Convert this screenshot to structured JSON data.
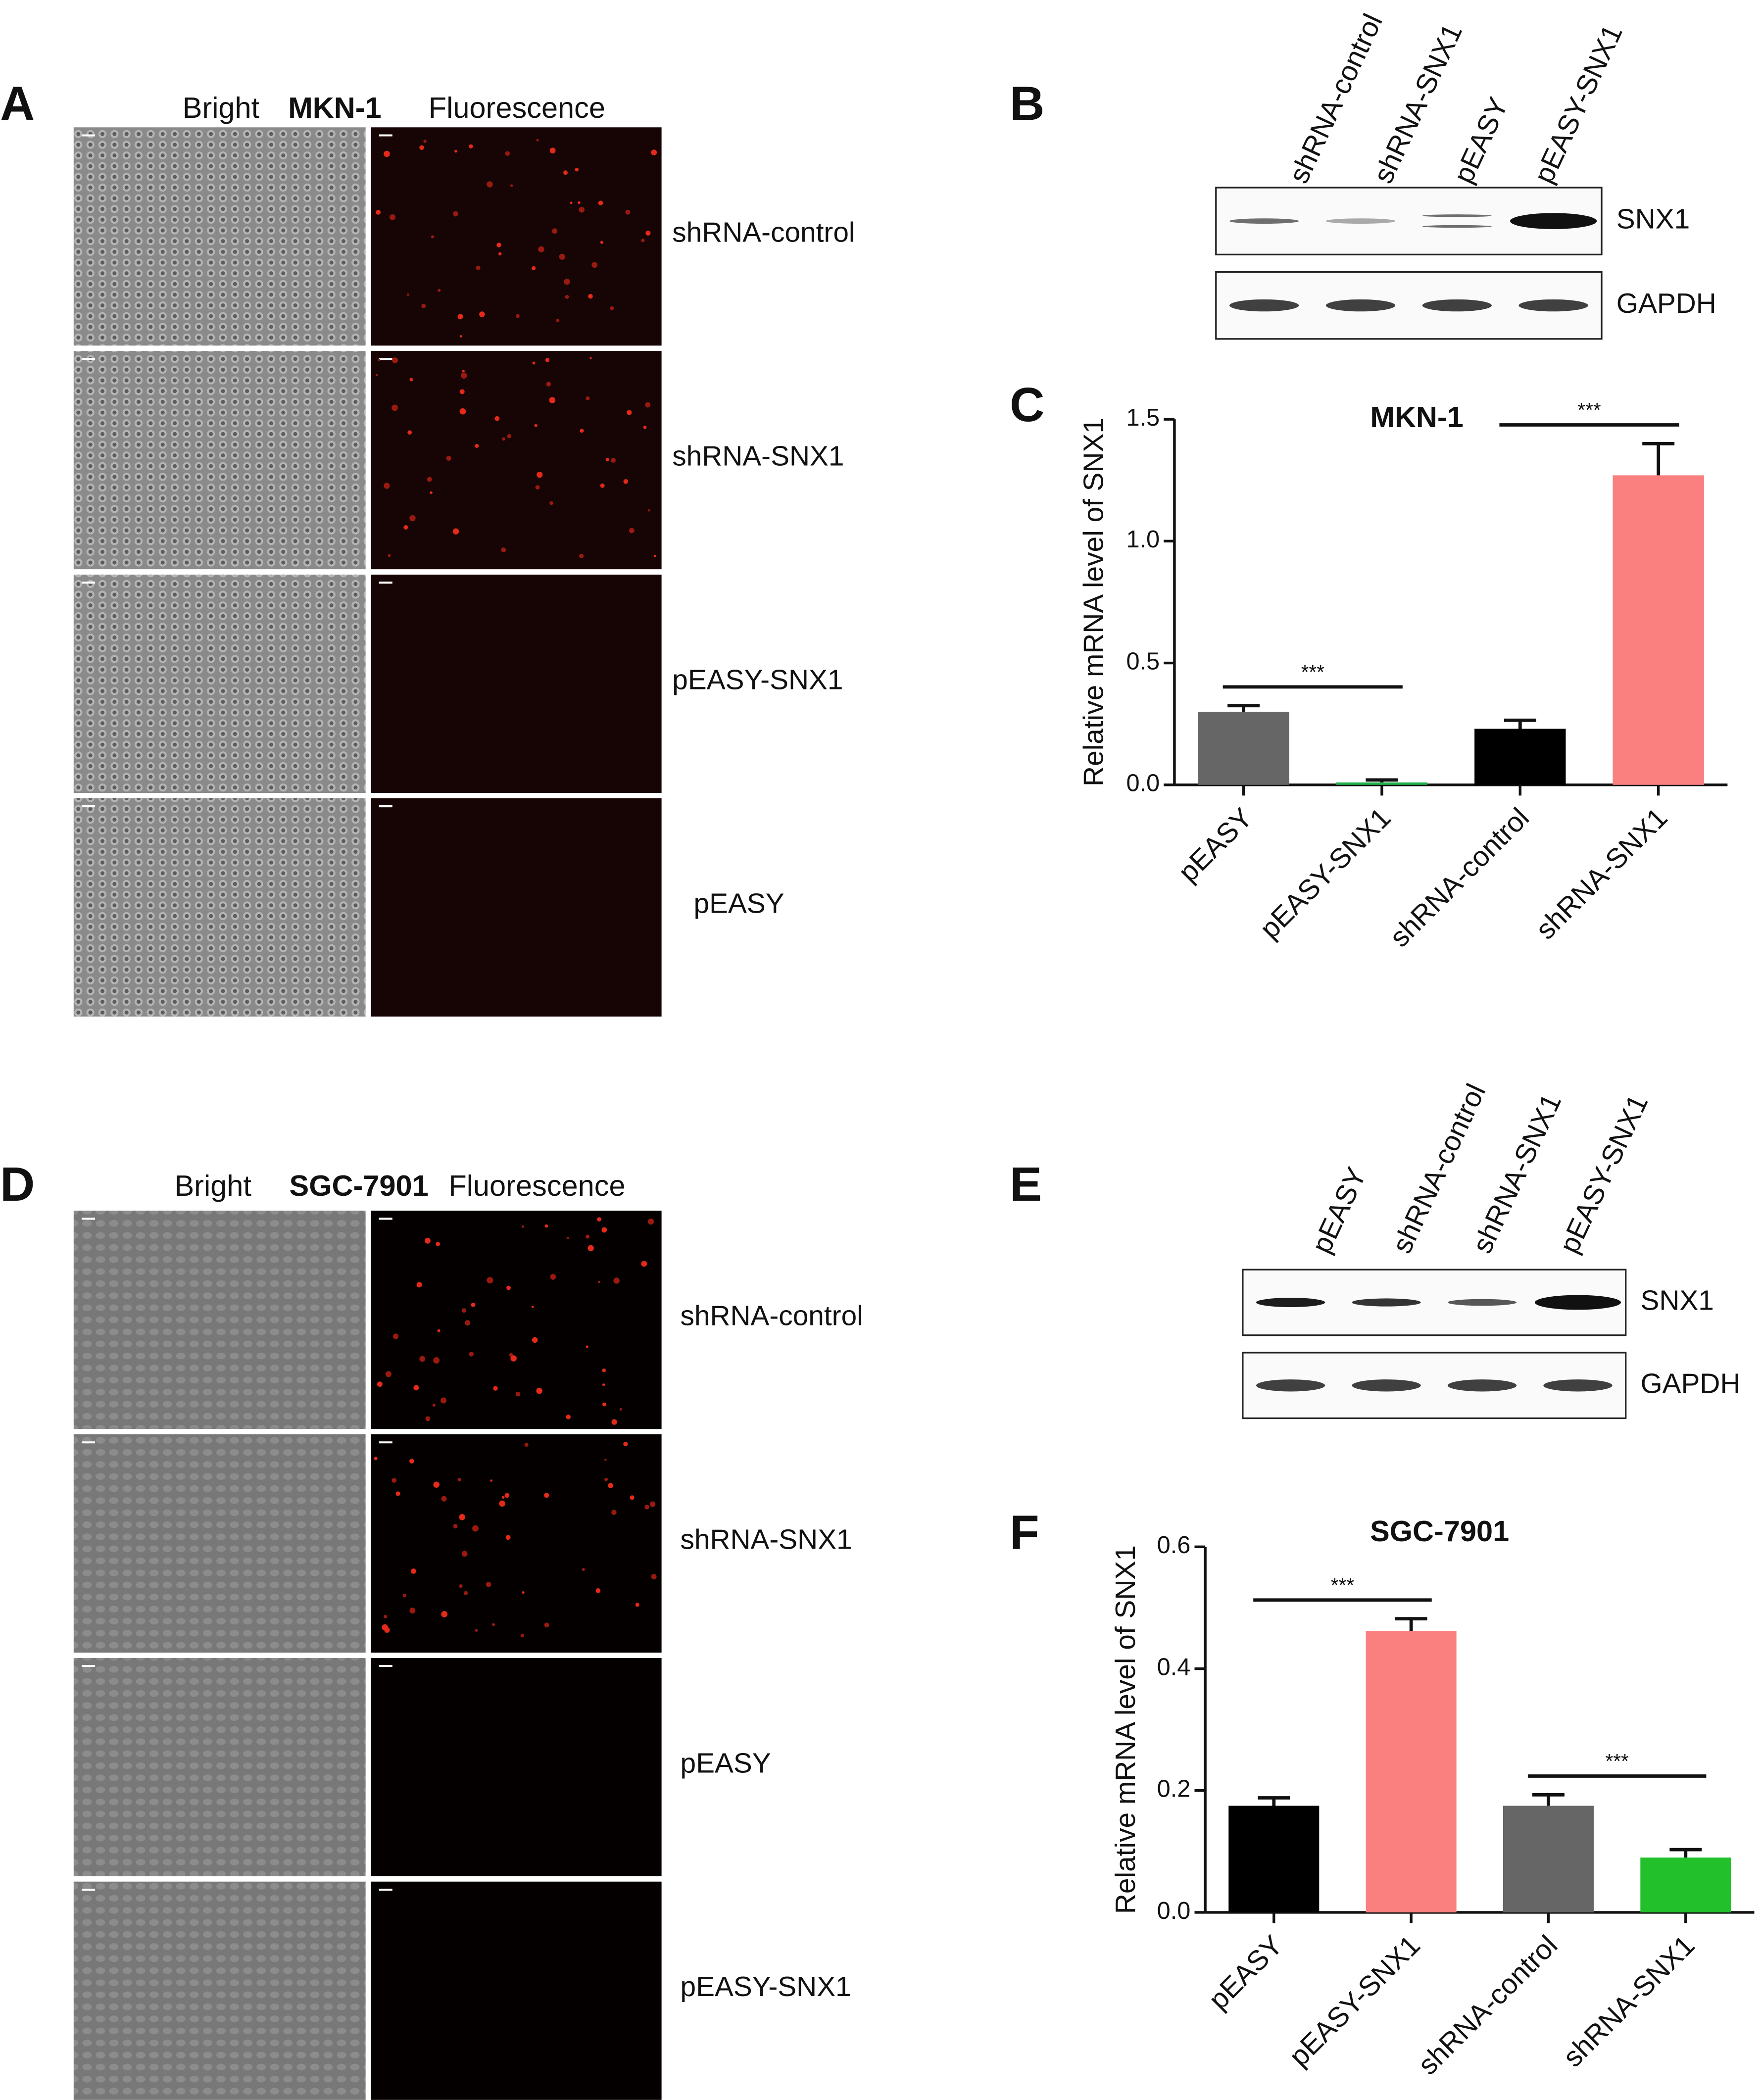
{
  "micrograph_panels": [
    {
      "letter": "A",
      "bright": "Bright",
      "cell_line": "MKN-1",
      "fluorescence": "Fluorescence",
      "rows": [
        "shRNA-control",
        "shRNA-SNX1",
        "pEASY-SNX1",
        "pEASY"
      ]
    },
    {
      "letter": "D",
      "bright": "Bright",
      "cell_line": "SGC-7901",
      "fluorescence": "Fluorescence",
      "rows": [
        "shRNA-control",
        "shRNA-SNX1",
        "pEASY",
        "pEASY-SNX1"
      ]
    }
  ],
  "blot_panels": [
    {
      "letter": "B",
      "lanes": [
        "shRNA-control",
        "shRNA-SNX1",
        "pEASY",
        "pEASY-SNX1"
      ],
      "proteins": [
        "SNX1",
        "GAPDH"
      ]
    },
    {
      "letter": "E",
      "lanes": [
        "pEASY",
        "shRNA-control",
        "shRNA-SNX1",
        "pEASY-SNX1"
      ],
      "proteins": [
        "SNX1",
        "GAPDH"
      ]
    }
  ],
  "chart_data": [
    {
      "type": "bar",
      "panel_label": "C",
      "title": "MKN-1",
      "y_label": "Relative mRNA level of SNX1",
      "categories": [
        "pEASY",
        "pEASY-SNX1",
        "shRNA-control",
        "shRNA-SNX1"
      ],
      "values": [
        0.3,
        0.01,
        0.23,
        1.27
      ],
      "errors": [
        0.025,
        0.01,
        0.035,
        0.13
      ],
      "colors": [
        "#666666",
        "#22b14c",
        "#000000",
        "#fa8080"
      ],
      "ylim": [
        0,
        1.5
      ],
      "yticks": [
        {
          "value": 0,
          "label": "0.0"
        },
        {
          "value": 0.5,
          "label": "0.5"
        },
        {
          "value": 1,
          "label": "1.0"
        },
        {
          "value": 1.5,
          "label": "1.5"
        }
      ],
      "annotations": [
        "***",
        "***"
      ]
    },
    {
      "type": "bar",
      "panel_label": "F",
      "title": "SGC-7901",
      "y_label": "Relative mRNA level of SNX1",
      "categories": [
        "pEASY",
        "pEASY-SNX1",
        "shRNA-control",
        "shRNA-SNX1"
      ],
      "values": [
        0.175,
        0.462,
        0.175,
        0.09
      ],
      "errors": [
        0.013,
        0.02,
        0.018,
        0.013
      ],
      "colors": [
        "#000000",
        "#fa8080",
        "#666666",
        "#22c02a"
      ],
      "ylim": [
        0,
        0.6
      ],
      "yticks": [
        {
          "value": 0,
          "label": "0.0"
        },
        {
          "value": 0.2,
          "label": "0.2"
        },
        {
          "value": 0.4,
          "label": "0.4"
        },
        {
          "value": 0.6,
          "label": "0.6"
        }
      ],
      "annotations": [
        "***",
        "***"
      ]
    }
  ]
}
